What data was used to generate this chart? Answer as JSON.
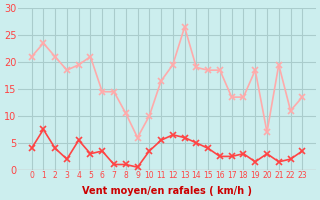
{
  "hours": [
    0,
    1,
    2,
    3,
    4,
    5,
    6,
    7,
    8,
    9,
    10,
    11,
    12,
    13,
    14,
    15,
    16,
    17,
    18,
    19,
    20,
    21,
    22,
    23
  ],
  "wind_avg": [
    4,
    7.5,
    4,
    2,
    5.5,
    3,
    3.5,
    1,
    1,
    0.5,
    3.5,
    5.5,
    6.5,
    6,
    5,
    4,
    2.5,
    2.5,
    3,
    1.5,
    3,
    1.5,
    2,
    3.5
  ],
  "wind_gust": [
    21,
    23.5,
    21,
    18.5,
    19.5,
    21,
    14.5,
    14.5,
    10.5,
    6,
    10,
    16.5,
    19.5,
    26.5,
    19,
    18.5,
    18.5,
    13.5,
    13.5,
    18.5,
    7,
    19.5,
    11,
    13.5
  ],
  "avg_color": "#ff4444",
  "gust_color": "#ffaaaa",
  "bg_color": "#cceeee",
  "grid_color": "#aacccc",
  "ylabel_color": "#cc0000",
  "xlabel": "Vent moyen/en rafales ( km/h )",
  "ylim": [
    0,
    30
  ],
  "yticks": [
    0,
    5,
    10,
    15,
    20,
    25,
    30
  ]
}
